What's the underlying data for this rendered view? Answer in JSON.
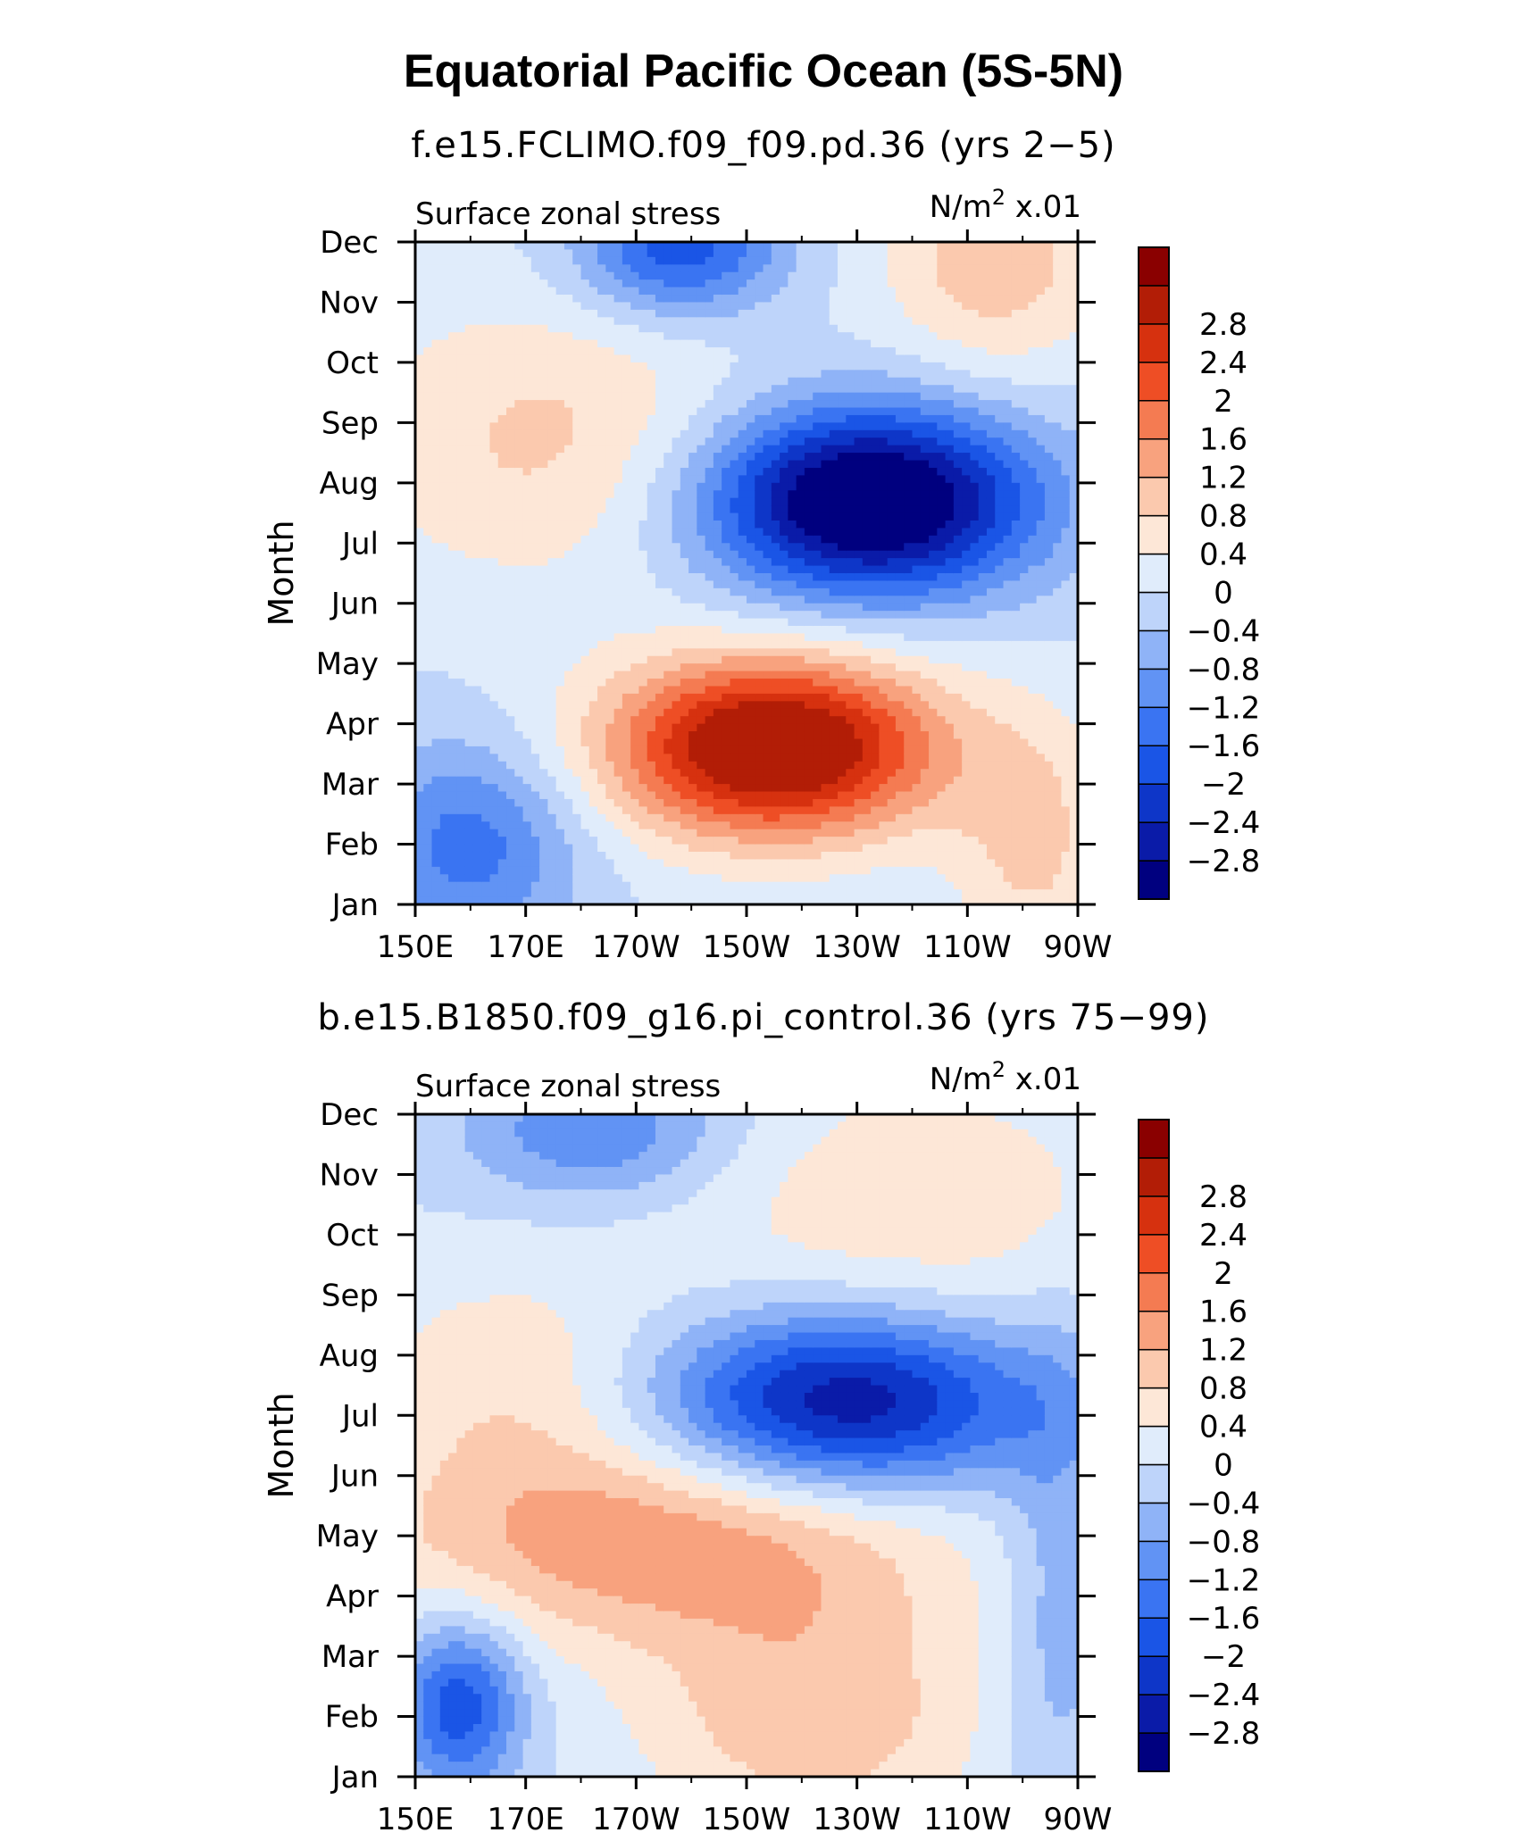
{
  "title": "Equatorial Pacific Ocean (5S-5N)",
  "colormap": {
    "levels": [
      -2.8,
      -2.4,
      -2,
      -1.6,
      -1.2,
      -0.8,
      -0.4,
      0,
      0.4,
      0.8,
      1.2,
      1.6,
      2,
      2.4,
      2.8
    ],
    "level_labels": [
      "−2.8",
      "−2.4",
      "−2",
      "−1.6",
      "−1.2",
      "−0.8",
      "−0.4",
      "0",
      "0.4",
      "0.8",
      "1.2",
      "1.6",
      "2",
      "2.4",
      "2.8"
    ],
    "colors": [
      "#00007f",
      "#0a1ba8",
      "#0e36c8",
      "#1a55e6",
      "#3a74f2",
      "#6193f4",
      "#8fb3f7",
      "#bed4fa",
      "#e0ecfb",
      "#fde7d7",
      "#fbc9ae",
      "#f8a27e",
      "#f47b52",
      "#ee4e25",
      "#d6310f",
      "#b21d06",
      "#8a0000"
    ]
  },
  "chart_data": [
    {
      "type": "heatmap",
      "subtitle": "f.e15.FCLIMO.f09_f09.pd.36 (yrs 2−5)",
      "left_label": "Surface zonal stress",
      "units_label": "N/m",
      "units_sup": "2",
      "units_scale": " x.01",
      "ylabel": "Month",
      "x_tick_labels": [
        "150E",
        "170E",
        "170W",
        "150W",
        "130W",
        "110W",
        "90W"
      ],
      "x_ticks": [
        150,
        170,
        190,
        210,
        230,
        250,
        270
      ],
      "xlim": [
        150,
        270
      ],
      "y_tick_labels": [
        "Jan",
        "Feb",
        "Mar",
        "Apr",
        "May",
        "Jun",
        "Jul",
        "Aug",
        "Sep",
        "Oct",
        "Nov",
        "Dec"
      ],
      "ylim": [
        1,
        12
      ],
      "features": [
        {
          "lon": 215,
          "month": 3.6,
          "amp": 3.7,
          "sx": 21,
          "sy": 1.05
        },
        {
          "lon": 232,
          "month": 7.7,
          "amp": -3.8,
          "sx": 21,
          "sy": 1.1
        },
        {
          "lon": 160,
          "month": 2.0,
          "amp": -1.4,
          "sx": 14,
          "sy": 1.2
        },
        {
          "lon": 198,
          "month": 11.9,
          "amp": -1.9,
          "sx": 13,
          "sy": 0.8
        },
        {
          "lon": 175,
          "month": 8.7,
          "amp": 0.9,
          "sx": 26,
          "sy": 1.7
        },
        {
          "lon": 255,
          "month": 11.8,
          "amp": 1.1,
          "sx": 14,
          "sy": 1.4
        },
        {
          "lon": 262,
          "month": 2.0,
          "amp": 0.9,
          "sx": 10,
          "sy": 1.5
        }
      ]
    },
    {
      "type": "heatmap",
      "subtitle": "b.e15.B1850.f09_g16.pi_control.36 (yrs 75−99)",
      "left_label": "Surface zonal stress",
      "units_label": "N/m",
      "units_sup": "2",
      "units_scale": " x.01",
      "ylabel": "Month",
      "x_tick_labels": [
        "150E",
        "170E",
        "170W",
        "150W",
        "130W",
        "110W",
        "90W"
      ],
      "x_ticks": [
        150,
        170,
        190,
        210,
        230,
        250,
        270
      ],
      "xlim": [
        150,
        270
      ],
      "y_tick_labels": [
        "Jan",
        "Feb",
        "Mar",
        "Apr",
        "May",
        "Jun",
        "Jul",
        "Aug",
        "Sep",
        "Oct",
        "Nov",
        "Dec"
      ],
      "ylim": [
        1,
        12
      ],
      "features": [
        {
          "lon": 228,
          "month": 7.2,
          "amp": -2.8,
          "sx": 24,
          "sy": 1.05
        },
        {
          "lon": 195,
          "month": 4.9,
          "amp": 1.5,
          "sx": 36,
          "sy": 1.2
        },
        {
          "lon": 222,
          "month": 2.0,
          "amp": 1.1,
          "sx": 22,
          "sy": 1.4
        },
        {
          "lon": 158,
          "month": 2.2,
          "amp": -1.9,
          "sx": 8,
          "sy": 1.0
        },
        {
          "lon": 183,
          "month": 11.7,
          "amp": -1.2,
          "sx": 17,
          "sy": 0.8
        },
        {
          "lon": 168,
          "month": 7.5,
          "amp": 0.7,
          "sx": 20,
          "sy": 1.4
        },
        {
          "lon": 240,
          "month": 10.5,
          "amp": 0.7,
          "sx": 30,
          "sy": 1.6
        },
        {
          "lon": 266,
          "month": 4.0,
          "amp": -0.7,
          "sx": 7,
          "sy": 3.0
        }
      ]
    }
  ]
}
